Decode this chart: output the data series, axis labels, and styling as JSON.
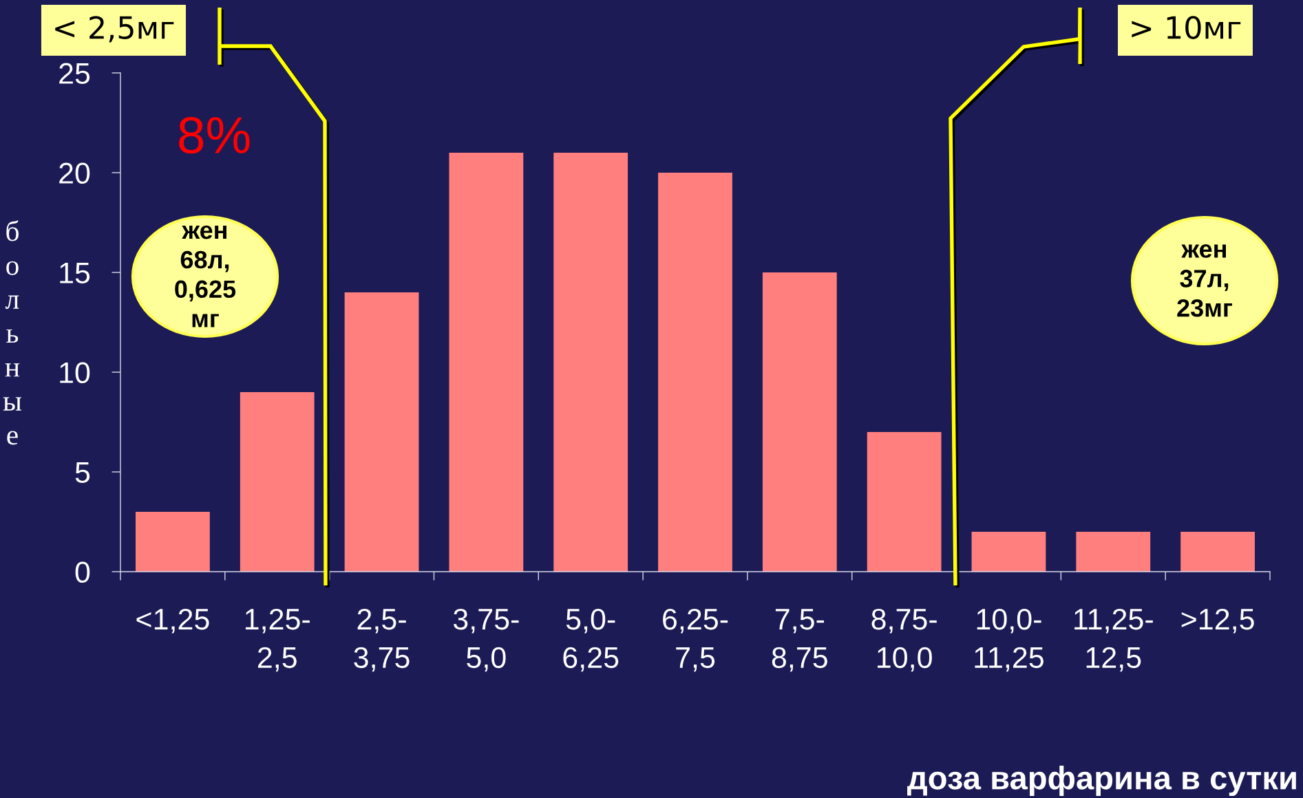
{
  "chart_data": {
    "type": "bar",
    "categories": [
      "<1,25",
      "1,25-\n2,5",
      "2,5-\n3,75",
      "3,75-\n5,0",
      "5,0-\n6,25",
      "6,25-\n7,5",
      "7,5-\n8,75",
      "8,75-\n10,0",
      "10,0-\n11,25",
      "11,25-\n12,5",
      ">12,5"
    ],
    "values": [
      3,
      9,
      14,
      21,
      21,
      20,
      15,
      7,
      2,
      2,
      2
    ],
    "color": "#ff7f7f",
    "ylim": [
      0,
      25
    ],
    "yticks": [
      0,
      5,
      10,
      15,
      20,
      25
    ],
    "xlabel": "доза варфарина в сутки",
    "ylabel": "больные",
    "annotations": [
      "< 2,5мг",
      "> 10мг",
      "8%",
      "жен\n68л,\n0,625\nмг",
      "жен\n37л,\n23мг"
    ]
  }
}
